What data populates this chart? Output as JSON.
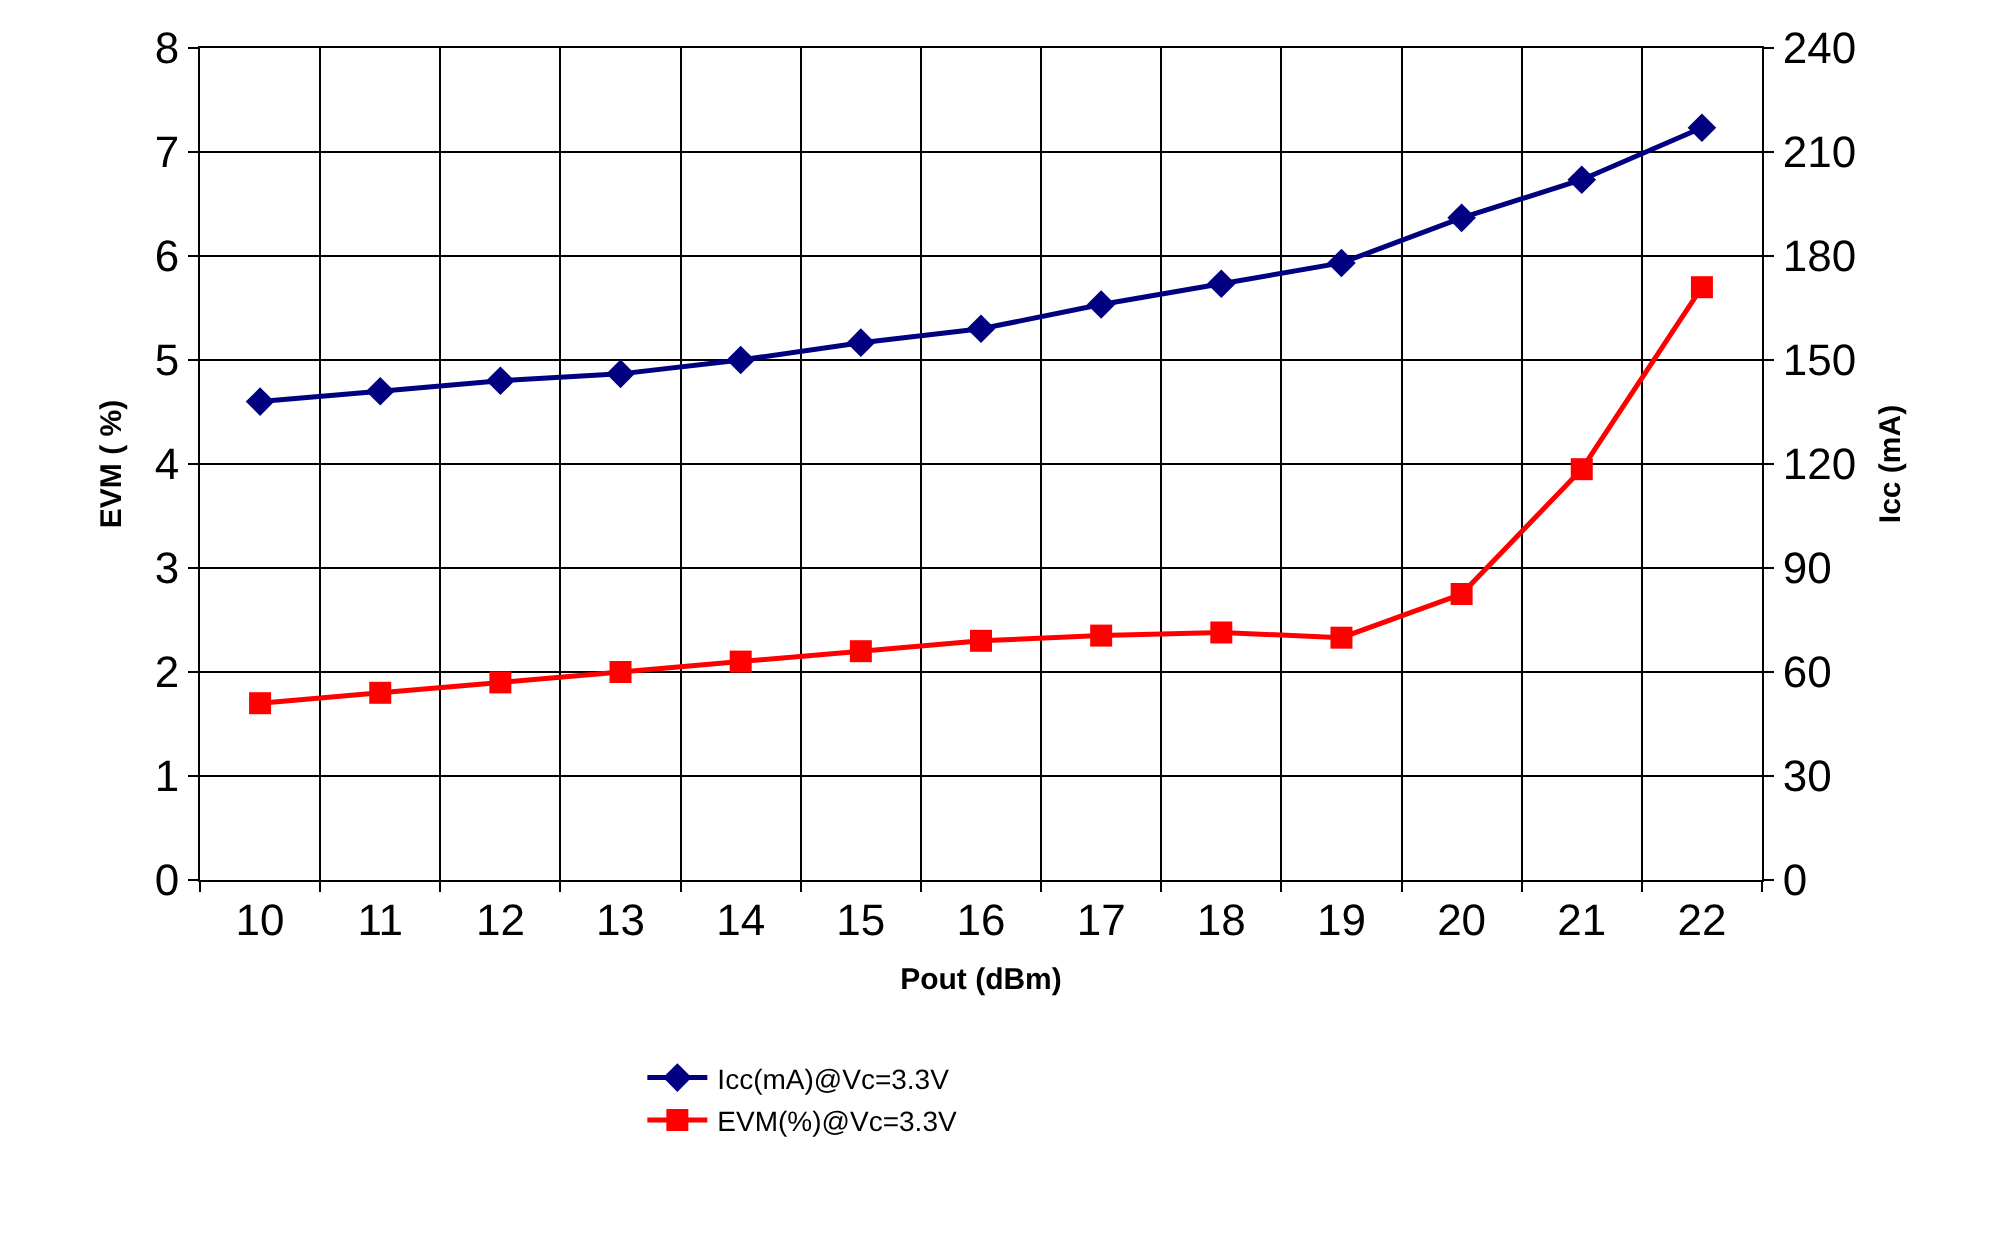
{
  "chart_data": {
    "type": "line",
    "xlabel": "Pout (dBm)",
    "ylabel": "EVM ( %)",
    "y2label": "Icc (mA)",
    "categories": [
      "10",
      "11",
      "12",
      "13",
      "14",
      "15",
      "16",
      "17",
      "18",
      "19",
      "20",
      "21",
      "22"
    ],
    "series": [
      {
        "name": "Icc(mA)@Vc=3.3V",
        "color": "#000080",
        "axis": "y2",
        "marker": "diamond",
        "values": [
          138,
          141,
          144,
          146,
          150,
          155,
          159,
          166,
          172,
          178,
          191,
          202,
          217
        ]
      },
      {
        "name": "EVM(%)@Vc=3.3V",
        "color": "#ff0000",
        "marker": "square",
        "values": [
          1.7,
          1.8,
          1.9,
          2.0,
          2.1,
          2.2,
          2.3,
          2.35,
          2.38,
          2.33,
          2.75,
          3.95,
          5.7
        ]
      }
    ],
    "ylim": [
      0,
      8
    ],
    "yticks": [
      0,
      1,
      2,
      3,
      4,
      5,
      6,
      7,
      8
    ],
    "y2lim": [
      0,
      240
    ],
    "y2ticks": [
      0,
      30,
      60,
      90,
      120,
      150,
      180,
      210,
      240
    ],
    "grid": true,
    "legend": "bottom",
    "line_style": "solid"
  }
}
